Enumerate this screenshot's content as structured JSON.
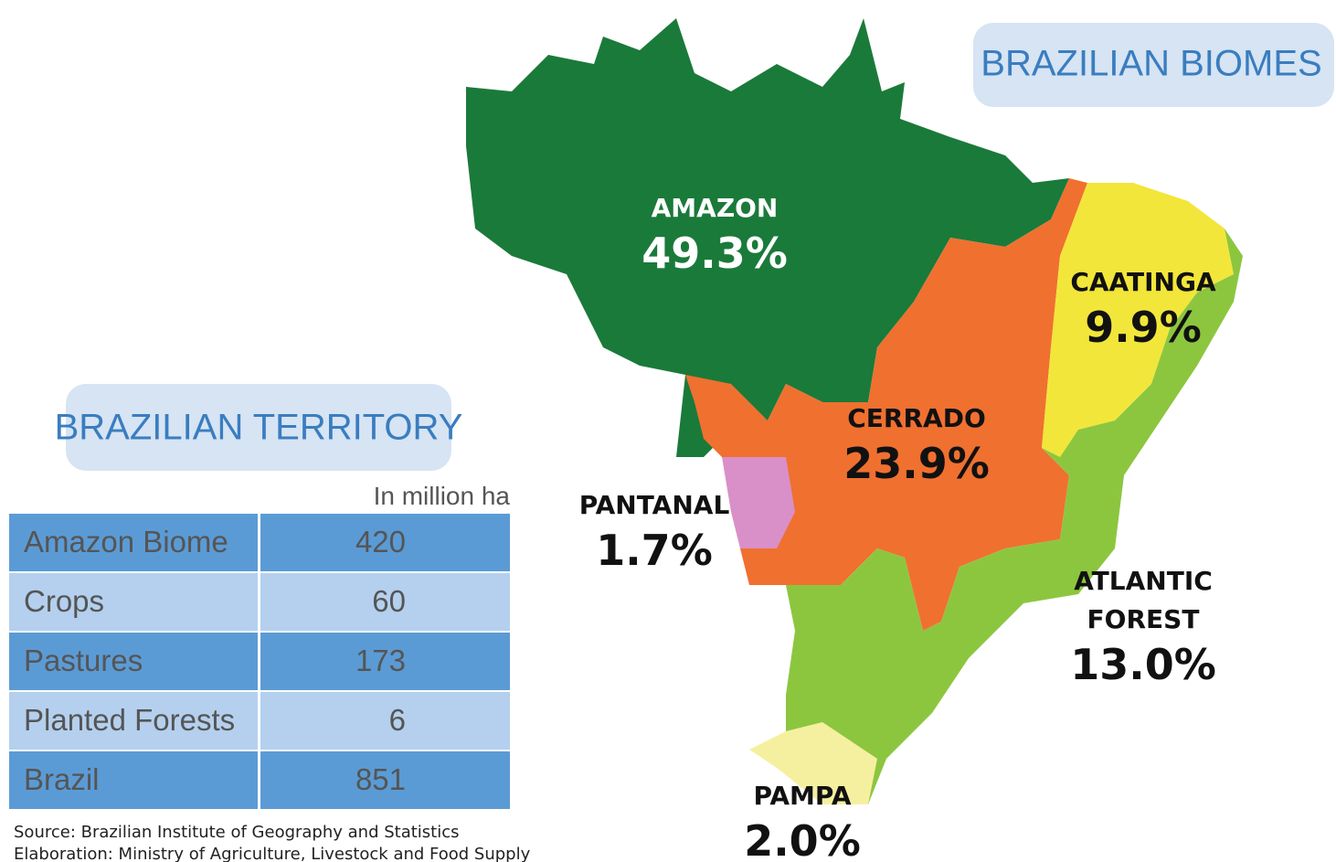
{
  "map_title": "BRAZILIAN BIOMES",
  "biomes": [
    {
      "name_lines": [
        "AMAZON"
      ],
      "share": "49.3%"
    },
    {
      "name_lines": [
        "CAATINGA"
      ],
      "share": "9.9%"
    },
    {
      "name_lines": [
        "CERRADO"
      ],
      "share": "23.9%"
    },
    {
      "name_lines": [
        "PANTANAL"
      ],
      "share": "1.7%"
    },
    {
      "name_lines": [
        "ATLANTIC",
        "FOREST"
      ],
      "share": "13.0%"
    },
    {
      "name_lines": [
        "PAMPA"
      ],
      "share": "2.0%"
    }
  ],
  "table": {
    "title": "BRAZILIAN TERRITORY",
    "unit": "In million ha",
    "rows": [
      [
        "Amazon Biome",
        420
      ],
      [
        "Crops",
        60
      ],
      [
        "Pastures",
        173
      ],
      [
        "Planted Forests",
        6
      ],
      [
        "Brazil",
        851
      ]
    ]
  },
  "source_lines": [
    "Source: Brazilian Institute of Geography and Statistics",
    "Elaboration: Ministry of Agriculture, Livestock and Food Supply"
  ]
}
